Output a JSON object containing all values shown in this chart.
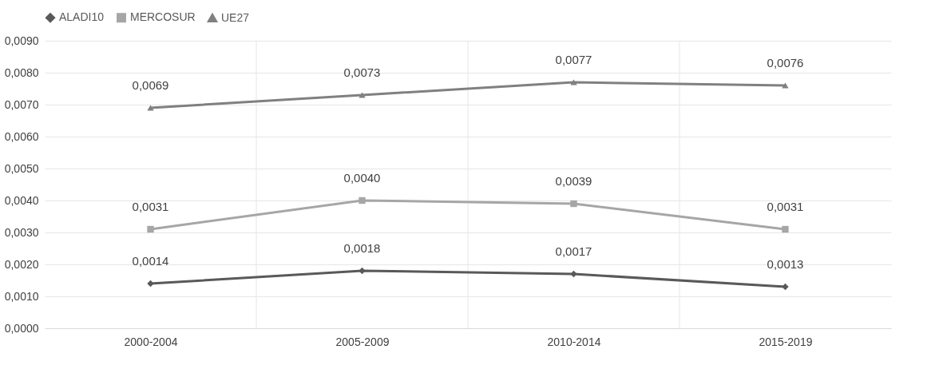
{
  "chart_data": {
    "type": "line",
    "categories": [
      "2000-2004",
      "2005-2009",
      "2010-2014",
      "2015-2019"
    ],
    "series": [
      {
        "name": "ALADI10",
        "color": "#595959",
        "marker": "diamond",
        "values": [
          0.0014,
          0.0018,
          0.0017,
          0.0013
        ],
        "value_labels": [
          "0,0014",
          "0,0018",
          "0,0017",
          "0,0013"
        ]
      },
      {
        "name": "MERCOSUR",
        "color": "#a6a6a6",
        "marker": "square",
        "values": [
          0.0031,
          0.004,
          0.0039,
          0.0031
        ],
        "value_labels": [
          "0,0031",
          "0,0040",
          "0,0039",
          "0,0031"
        ]
      },
      {
        "name": "UE27",
        "color": "#808080",
        "marker": "triangle",
        "values": [
          0.0069,
          0.0073,
          0.0077,
          0.0076
        ],
        "value_labels": [
          "0,0069",
          "0,0073",
          "0,0077",
          "0,0076"
        ]
      }
    ],
    "ylim": [
      0,
      0.009
    ],
    "yticks": [
      {
        "value": 0,
        "label": "0,0000"
      },
      {
        "value": 0.001,
        "label": "0,0010"
      },
      {
        "value": 0.002,
        "label": "0,0020"
      },
      {
        "value": 0.003,
        "label": "0,0030"
      },
      {
        "value": 0.004,
        "label": "0,0040"
      },
      {
        "value": 0.005,
        "label": "0,0050"
      },
      {
        "value": 0.006,
        "label": "0,0060"
      },
      {
        "value": 0.007,
        "label": "0,0070"
      },
      {
        "value": 0.008,
        "label": "0,0080"
      },
      {
        "value": 0.009,
        "label": "0,0090"
      }
    ],
    "grid": true,
    "legend": "top",
    "line_style": "solid"
  }
}
